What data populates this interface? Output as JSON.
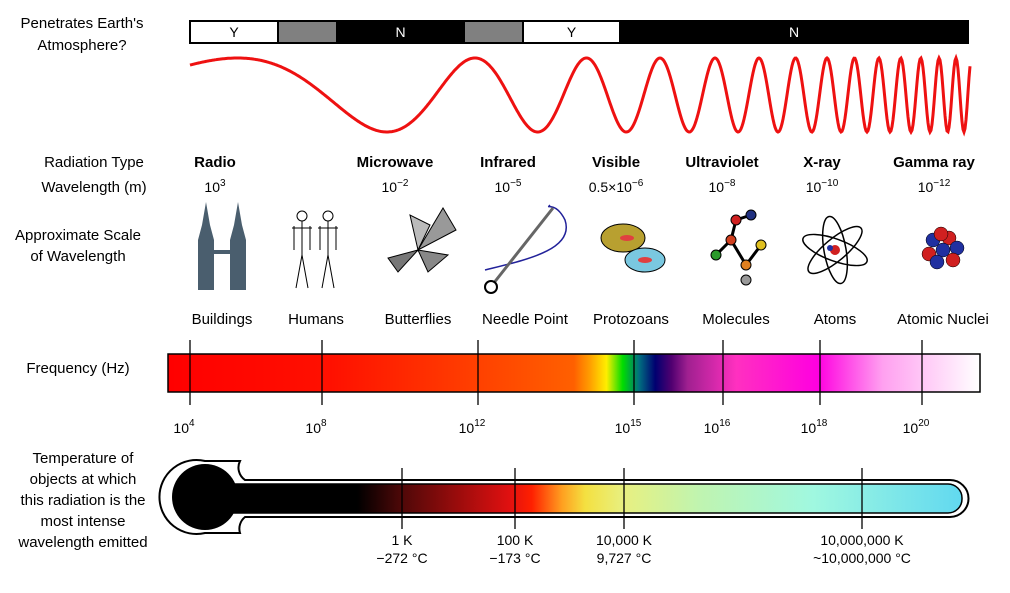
{
  "rows": {
    "atmosphere": "Penetrates Earth's Atmosphere?",
    "radiation_type": "Radiation Type",
    "wavelength": "Wavelength (m)",
    "scale": "Approximate Scale of Wavelength",
    "frequency": "Frequency (Hz)",
    "temperature": "Temperature of objects at which this radiation is the most intense wavelength emitted"
  },
  "atmosphere_bar": [
    {
      "label": "Y",
      "color": "#ffffff"
    },
    {
      "label": "",
      "color": "#808080"
    },
    {
      "label": "N",
      "color": "#000000"
    },
    {
      "label": "",
      "color": "#808080"
    },
    {
      "label": "Y",
      "color": "#ffffff"
    },
    {
      "label": "N",
      "color": "#000000"
    }
  ],
  "types": [
    {
      "name": "Radio",
      "wl_base": "10",
      "wl_exp": "3",
      "scale": "Buildings",
      "icon": "buildings-icon"
    },
    {
      "name": "",
      "wl_base": "",
      "wl_exp": "",
      "scale": "Humans",
      "icon": "humans-icon"
    },
    {
      "name": "Microwave",
      "wl_base": "10",
      "wl_exp": "−2",
      "scale": "Butterflies",
      "icon": "butterfly-icon"
    },
    {
      "name": "Infrared",
      "wl_base": "10",
      "wl_exp": "−5",
      "scale": "Needle Point",
      "icon": "needle-icon"
    },
    {
      "name": "Visible",
      "wl_base": "0.5×10",
      "wl_exp": "−6",
      "scale": "Protozoans",
      "icon": "protozoa-icon"
    },
    {
      "name": "Ultraviolet",
      "wl_base": "10",
      "wl_exp": "−8",
      "scale": "Molecules",
      "icon": "molecule-icon"
    },
    {
      "name": "X-ray",
      "wl_base": "10",
      "wl_exp": "−10",
      "scale": "Atoms",
      "icon": "atom-icon"
    },
    {
      "name": "Gamma ray",
      "wl_base": "10",
      "wl_exp": "−12",
      "scale": "Atomic Nuclei",
      "icon": "nucleus-icon"
    }
  ],
  "frequency_ticks": [
    {
      "base": "10",
      "exp": "4"
    },
    {
      "base": "10",
      "exp": "8"
    },
    {
      "base": "10",
      "exp": "12"
    },
    {
      "base": "10",
      "exp": "15"
    },
    {
      "base": "10",
      "exp": "16"
    },
    {
      "base": "10",
      "exp": "18"
    },
    {
      "base": "10",
      "exp": "20"
    }
  ],
  "temperature_ticks": [
    {
      "k": "1 K",
      "c": "−272 °C"
    },
    {
      "k": "100 K",
      "c": "−173 °C"
    },
    {
      "k": "10,000 K",
      "c": "9,727 °C"
    },
    {
      "k": "10,000,000 K",
      "c": "~10,000,000 °C"
    }
  ],
  "colors": {
    "wave": "#ee1111"
  }
}
